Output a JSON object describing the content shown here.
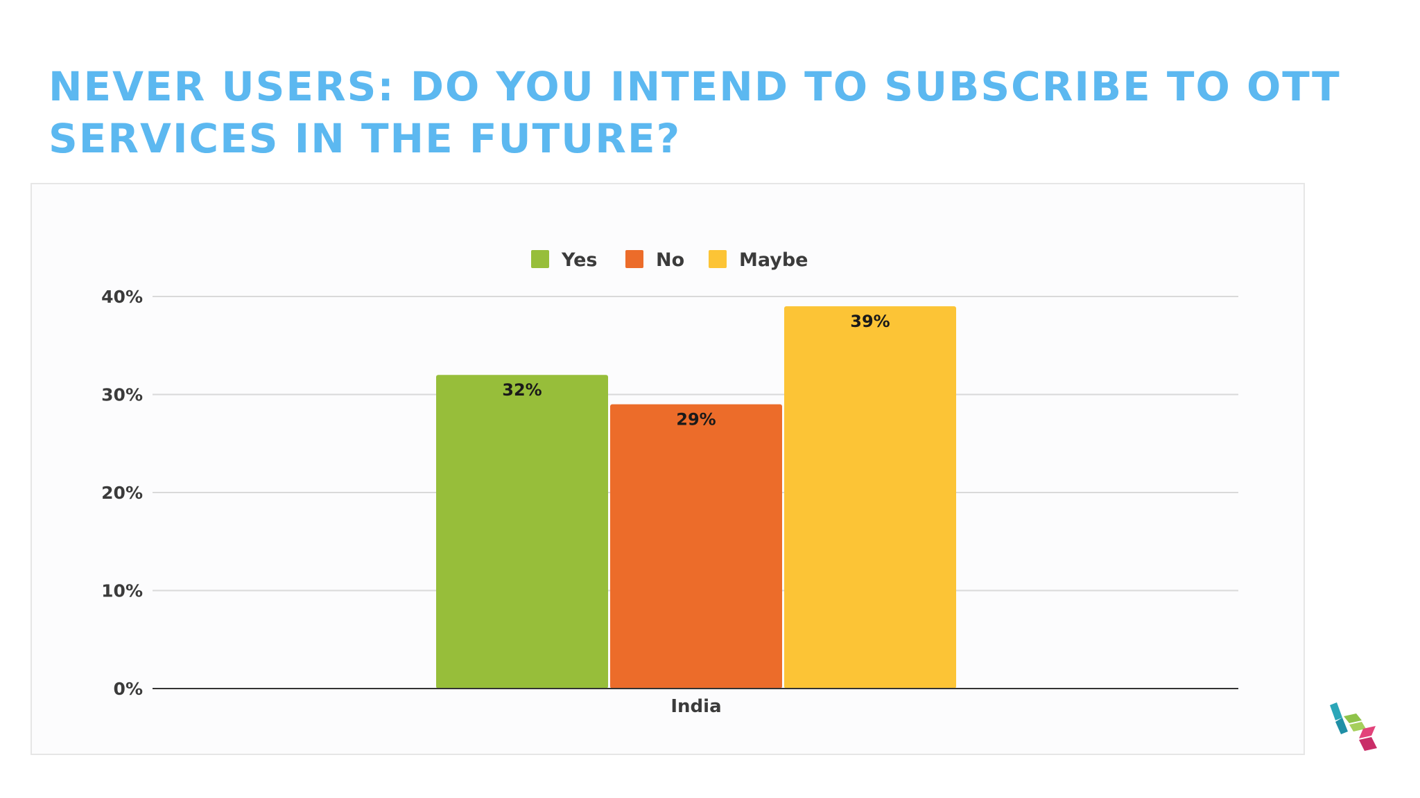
{
  "title": "NEVER USERS: DO YOU INTEND TO SUBSCRIBE TO OTT SERVICES IN THE FUTURE?",
  "chart_data": {
    "type": "bar",
    "categories": [
      "India"
    ],
    "series": [
      {
        "name": "Yes",
        "values": [
          32
        ],
        "color": "#97be3a",
        "label": "32%"
      },
      {
        "name": "No",
        "values": [
          29
        ],
        "color": "#ec6c2a",
        "label": "29%"
      },
      {
        "name": "Maybe",
        "values": [
          39
        ],
        "color": "#fcc436",
        "label": "39%"
      }
    ],
    "yticks": [
      "0%",
      "10%",
      "20%",
      "30%",
      "40%"
    ],
    "ytick_values": [
      0,
      10,
      20,
      30,
      40
    ],
    "ylim": [
      0,
      40
    ],
    "grid": true,
    "legend_position": "top-center"
  },
  "logo": {
    "name": "brand-logo",
    "colors": [
      "#2ba6b8",
      "#8fc34a",
      "#e2437a"
    ]
  }
}
